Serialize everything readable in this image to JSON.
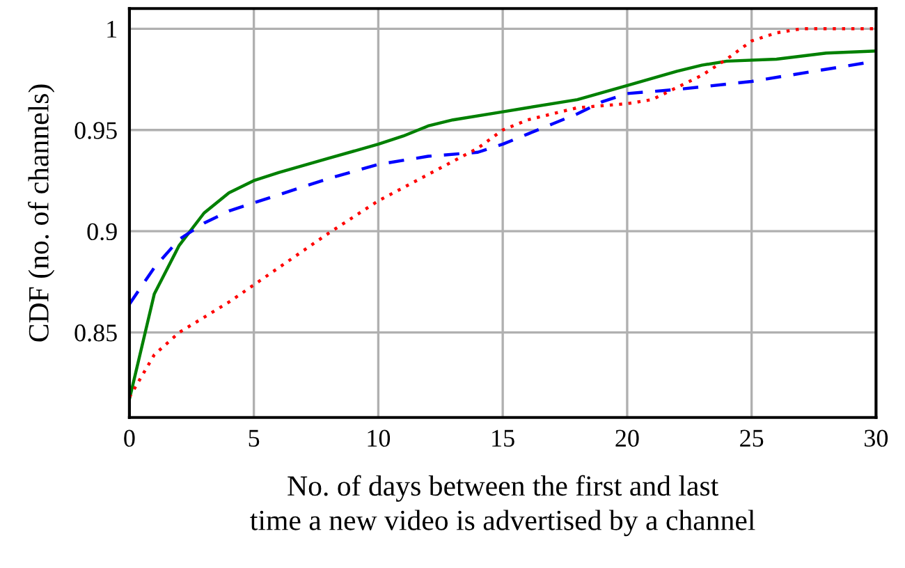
{
  "chart_data": {
    "type": "line",
    "xlabel": "No. of days between the first and last\ntime a new video is advertised by a channel",
    "ylabel": "CDF (no. of channels)",
    "xlim": [
      0,
      30
    ],
    "xticks": [
      0,
      5,
      10,
      15,
      20,
      25,
      30
    ],
    "ylim": [
      0.808,
      1.01
    ],
    "yticks": [
      0.85,
      0.9,
      0.95,
      1
    ],
    "grid": true,
    "series": [
      {
        "color": "#008000",
        "line_style": "solid",
        "x": [
          0,
          1,
          2,
          3,
          4,
          5,
          6,
          8,
          10,
          11,
          12,
          13,
          15,
          16,
          18,
          20,
          22,
          23,
          24,
          26,
          28,
          30
        ],
        "values": [
          0.817,
          0.869,
          0.893,
          0.909,
          0.919,
          0.925,
          0.929,
          0.936,
          0.943,
          0.947,
          0.952,
          0.955,
          0.959,
          0.961,
          0.965,
          0.972,
          0.979,
          0.982,
          0.984,
          0.985,
          0.988,
          0.989
        ]
      },
      {
        "color": "#0000ff",
        "line_style": "dashed",
        "x": [
          0,
          1,
          2,
          3,
          4,
          6,
          8,
          10,
          12,
          14,
          15,
          16,
          17,
          18,
          19,
          20,
          22,
          25,
          28,
          30
        ],
        "values": [
          0.864,
          0.882,
          0.896,
          0.904,
          0.91,
          0.918,
          0.926,
          0.933,
          0.937,
          0.939,
          0.943,
          0.948,
          0.953,
          0.958,
          0.964,
          0.968,
          0.97,
          0.974,
          0.98,
          0.984
        ]
      },
      {
        "color": "#ff0000",
        "line_style": "dotted",
        "x": [
          0,
          1,
          2,
          4,
          6,
          8,
          10,
          12,
          14,
          15,
          16,
          18,
          20,
          21,
          22,
          23,
          24,
          25,
          26,
          27,
          30
        ],
        "values": [
          0.818,
          0.839,
          0.85,
          0.865,
          0.882,
          0.899,
          0.915,
          0.928,
          0.941,
          0.95,
          0.955,
          0.961,
          0.963,
          0.965,
          0.971,
          0.977,
          0.985,
          0.994,
          0.998,
          1.0,
          1.0
        ]
      }
    ]
  }
}
